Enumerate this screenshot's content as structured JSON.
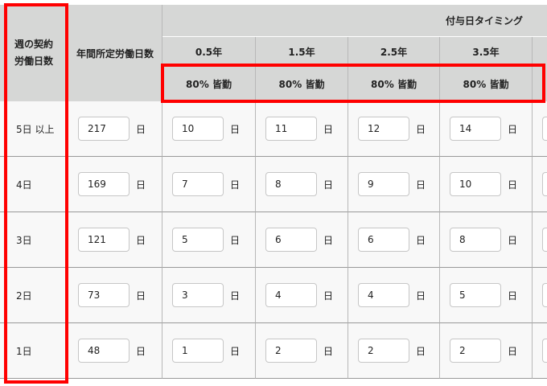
{
  "header": {
    "weekly_days_label": "週の契約\n労働日数",
    "annual_days_label": "年間所定労働日数",
    "grant_timing_label": "付与日タイミング",
    "periods": [
      "0.5年",
      "1.5年",
      "2.5年",
      "3.5年",
      ""
    ],
    "attendance": [
      "80% 皆勤",
      "80% 皆勤",
      "80% 皆勤",
      "80% 皆勤",
      ""
    ]
  },
  "unit": "日",
  "rows": [
    {
      "label": "5日 以上",
      "annual": "217",
      "values": [
        "10",
        "11",
        "12",
        "14",
        ""
      ]
    },
    {
      "label": "4日",
      "annual": "169",
      "values": [
        "7",
        "8",
        "9",
        "10",
        ""
      ]
    },
    {
      "label": "3日",
      "annual": "121",
      "values": [
        "5",
        "6",
        "6",
        "8",
        ""
      ]
    },
    {
      "label": "2日",
      "annual": "73",
      "values": [
        "3",
        "4",
        "4",
        "5",
        ""
      ]
    },
    {
      "label": "1日",
      "annual": "48",
      "values": [
        "1",
        "2",
        "2",
        "2",
        ""
      ]
    }
  ],
  "colors": {
    "highlight": "#ff0000",
    "header_bg": "#d6d7d6",
    "row_bg": "#f8f8f8"
  }
}
